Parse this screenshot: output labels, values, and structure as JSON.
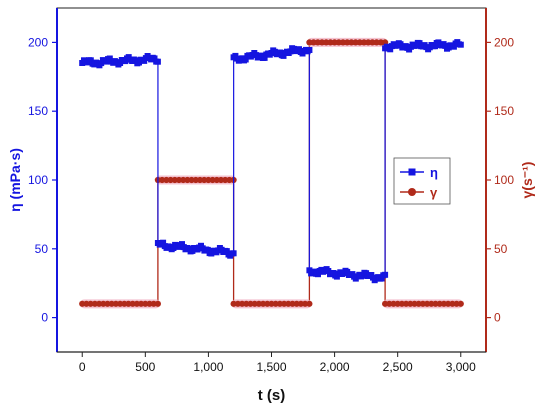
{
  "colors": {
    "eta": "#1515e0",
    "gamma": "#b02a1a",
    "gamma_halo": "#f2b8c8",
    "axis": "#222222"
  },
  "chart_data": {
    "type": "line",
    "xlabel": "t (s)",
    "ylabel_left": "η (mPa·s)",
    "ylabel_right": "γ(s⁻¹)",
    "xlim": [
      -200,
      3200
    ],
    "ylim_left": [
      -25,
      225
    ],
    "ylim_right": [
      -25,
      225
    ],
    "x_ticks": [
      0,
      500,
      1000,
      1500,
      2000,
      2500,
      3000
    ],
    "x_tick_labels": [
      "0",
      "500",
      "1,000",
      "1,500",
      "2,000",
      "2,500",
      "3,000"
    ],
    "y_left_ticks": [
      0,
      50,
      100,
      150,
      200
    ],
    "y_left_tick_labels": [
      "0",
      "50",
      "100",
      "150",
      "200"
    ],
    "y_right_ticks": [
      0,
      50,
      100,
      150,
      200
    ],
    "y_right_tick_labels": [
      "0",
      "50",
      "100",
      "150",
      "200"
    ],
    "grid": false,
    "legend_position": "right-middle",
    "series": [
      {
        "name": "η",
        "axis": "left",
        "marker": "square",
        "segments": [
          {
            "x": [
              0,
              600
            ],
            "y": [
              185,
              188
            ]
          },
          {
            "x": [
              600,
              1200
            ],
            "y": [
              53,
              47
            ]
          },
          {
            "x": [
              1200,
              1800
            ],
            "y": [
              188,
              195
            ]
          },
          {
            "x": [
              1800,
              2400
            ],
            "y": [
              34,
              29
            ]
          },
          {
            "x": [
              2400,
              3000
            ],
            "y": [
              197,
              198
            ]
          }
        ],
        "transitions": [
          {
            "x": 600,
            "from": 188,
            "to": 53
          },
          {
            "x": 1200,
            "from": 47,
            "to": 188
          },
          {
            "x": 1800,
            "from": 195,
            "to": 34
          },
          {
            "x": 2400,
            "from": 29,
            "to": 197
          }
        ]
      },
      {
        "name": "γ",
        "axis": "right",
        "marker": "circle",
        "steps": [
          {
            "x": [
              0,
              600
            ],
            "y": 10
          },
          {
            "x": [
              600,
              1200
            ],
            "y": 100
          },
          {
            "x": [
              1200,
              1800
            ],
            "y": 10
          },
          {
            "x": [
              1800,
              2400
            ],
            "y": 200
          },
          {
            "x": [
              2400,
              3000
            ],
            "y": 10
          }
        ]
      }
    ]
  }
}
